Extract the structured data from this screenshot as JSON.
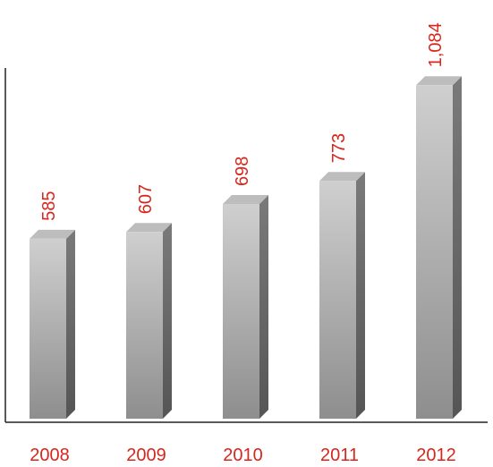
{
  "chart_data": {
    "type": "bar",
    "categories": [
      "2008",
      "2009",
      "2010",
      "2011",
      "2012"
    ],
    "values": [
      585,
      607,
      698,
      773,
      1084
    ],
    "data_labels": [
      "585",
      "607",
      "698",
      "773",
      "1,084"
    ],
    "title": "",
    "xlabel": "",
    "ylabel": "",
    "ylim": [
      0,
      1140
    ],
    "grid": false,
    "legend": "none",
    "style": "3d-column",
    "colors": {
      "bar_front_light": "#cfcfcf",
      "bar_front_dark": "#8e8e8e",
      "bar_side": "#6a6a6a",
      "bar_top": "#bdbdbd",
      "label": "#d8261c",
      "axis": "#222222"
    }
  }
}
